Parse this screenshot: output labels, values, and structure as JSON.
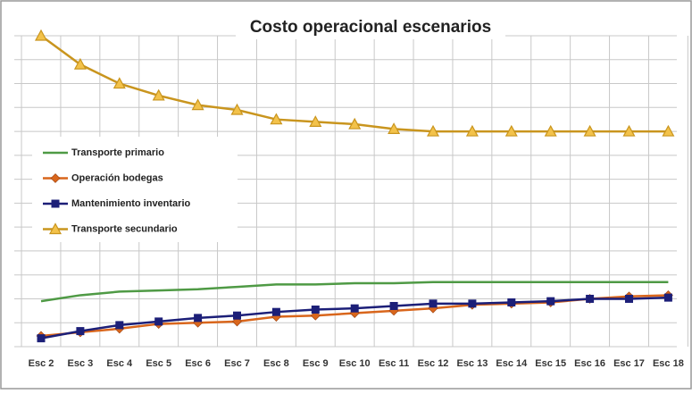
{
  "chart_data": {
    "type": "line",
    "title": "Costo operacional escenarios",
    "categories": [
      "Esc 2",
      "Esc 3",
      "Esc 4",
      "Esc 5",
      "Esc 6",
      "Esc 7",
      "Esc 8",
      "Esc 9",
      "Esc 10",
      "Esc 11",
      "Esc 12",
      "Esc 13",
      "Esc 14",
      "Esc 15",
      "Esc 16",
      "Esc 17",
      "Esc 18"
    ],
    "series": [
      {
        "name": "Transporte primario",
        "color": "#4f9a45",
        "marker": "none",
        "values": [
          1.9,
          2.15,
          2.3,
          2.35,
          2.4,
          2.5,
          2.6,
          2.6,
          2.65,
          2.65,
          2.7,
          2.7,
          2.7,
          2.7,
          2.7,
          2.7,
          2.7
        ]
      },
      {
        "name": "Operación bodegas",
        "color": "#d9661c",
        "marker": "diamond",
        "values": [
          0.45,
          0.6,
          0.75,
          0.95,
          1.0,
          1.05,
          1.25,
          1.3,
          1.4,
          1.5,
          1.6,
          1.75,
          1.8,
          1.85,
          2.0,
          2.1,
          2.15
        ]
      },
      {
        "name": "Mantenimiento inventario",
        "color": "#1c1f78",
        "marker": "square",
        "values": [
          0.35,
          0.65,
          0.9,
          1.05,
          1.2,
          1.3,
          1.45,
          1.55,
          1.6,
          1.7,
          1.8,
          1.8,
          1.85,
          1.9,
          2.0,
          2.0,
          2.05
        ]
      },
      {
        "name": "Transporte secundario",
        "color": "#c9951e",
        "marker": "triangle",
        "values": [
          13.0,
          11.8,
          11.0,
          10.5,
          10.1,
          9.9,
          9.5,
          9.4,
          9.3,
          9.1,
          9.0,
          9.0,
          9.0,
          9.0,
          9.0,
          9.0,
          9.0
        ]
      }
    ],
    "ylim": [
      0,
      13
    ],
    "yticks": [
      0,
      1,
      2,
      3,
      4,
      5,
      6,
      7,
      8,
      9,
      10,
      11,
      12,
      13
    ],
    "grid": true,
    "legend": "left"
  }
}
